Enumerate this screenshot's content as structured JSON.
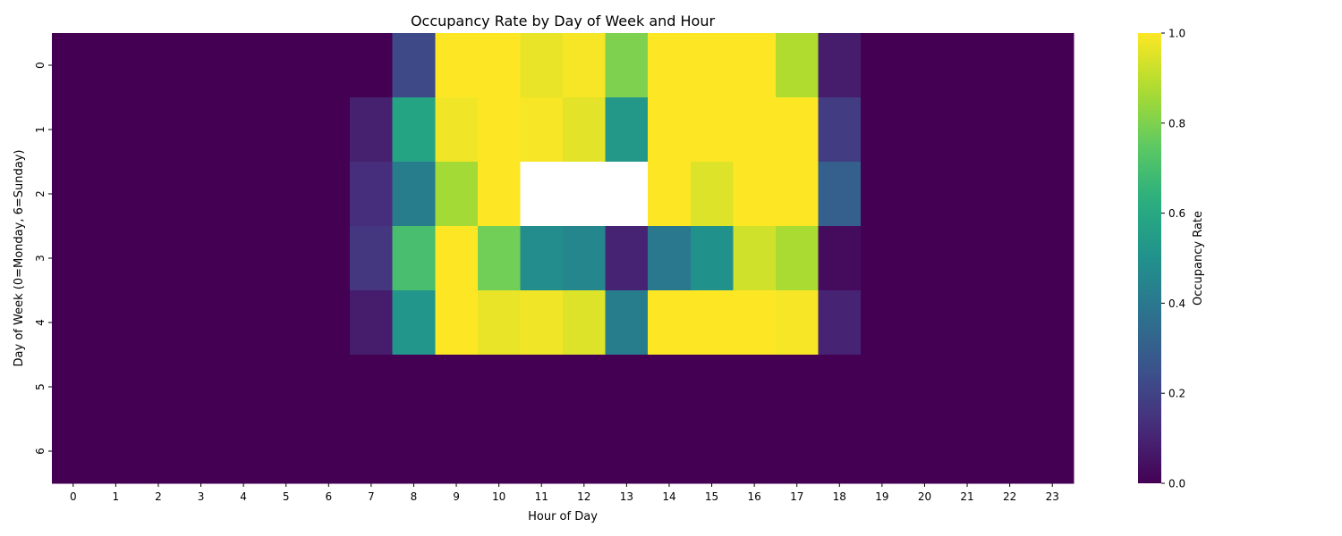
{
  "chart_data": {
    "type": "heatmap",
    "title": "Occupancy Rate by Day of Week and Hour",
    "xlabel": "Hour of Day",
    "ylabel": "Day of Week (0=Monday, 6=Sunday)",
    "x": [
      "0",
      "1",
      "2",
      "3",
      "4",
      "5",
      "6",
      "7",
      "8",
      "9",
      "10",
      "11",
      "12",
      "13",
      "14",
      "15",
      "16",
      "17",
      "18",
      "19",
      "20",
      "21",
      "22",
      "23"
    ],
    "y": [
      "0",
      "1",
      "2",
      "3",
      "4",
      "5",
      "6"
    ],
    "values": [
      [
        0,
        0,
        0,
        0,
        0,
        0,
        0,
        0,
        0.22,
        1.0,
        1.0,
        0.97,
        0.99,
        0.8,
        1.0,
        1.0,
        1.0,
        0.88,
        0.08,
        0,
        0,
        0,
        0,
        0
      ],
      [
        0,
        0,
        0,
        0,
        0,
        0,
        0,
        0.09,
        0.58,
        0.98,
        1.0,
        0.99,
        0.96,
        0.53,
        1.0,
        1.0,
        1.0,
        1.0,
        0.18,
        0,
        0,
        0,
        0,
        0
      ],
      [
        0,
        0,
        0,
        0,
        0,
        0,
        0,
        0.13,
        0.42,
        0.86,
        1.0,
        null,
        null,
        null,
        1.0,
        0.95,
        1.0,
        1.0,
        0.3,
        0,
        0,
        0,
        0,
        0
      ],
      [
        0,
        0,
        0,
        0,
        0,
        0,
        0,
        0.16,
        0.7,
        1.0,
        0.78,
        0.48,
        0.46,
        0.1,
        0.4,
        0.5,
        0.93,
        0.87,
        0.03,
        0,
        0,
        0,
        0,
        0
      ],
      [
        0,
        0,
        0,
        0,
        0,
        0,
        0,
        0.08,
        0.52,
        1.0,
        0.97,
        0.98,
        0.95,
        0.42,
        1.0,
        1.0,
        1.0,
        0.99,
        0.1,
        0,
        0,
        0,
        0,
        0
      ],
      [
        0,
        0,
        0,
        0,
        0,
        0,
        0,
        0,
        0,
        0,
        0,
        0,
        0,
        0,
        0,
        0,
        0,
        0,
        0,
        0,
        0,
        0,
        0,
        0
      ],
      [
        0,
        0,
        0,
        0,
        0,
        0,
        0,
        0,
        0,
        0,
        0,
        0,
        0,
        0,
        0,
        0,
        0,
        0,
        0,
        0,
        0,
        0,
        0,
        0
      ]
    ],
    "colormap": "viridis",
    "vmin": 0.0,
    "vmax": 1.0,
    "colorbar": {
      "label": "Occupancy Rate",
      "ticks": [
        "0.0",
        "0.2",
        "0.4",
        "0.6",
        "0.8",
        "1.0"
      ],
      "tick_values": [
        0.0,
        0.2,
        0.4,
        0.6,
        0.8,
        1.0
      ]
    },
    "missing_color": "#ffffff"
  }
}
